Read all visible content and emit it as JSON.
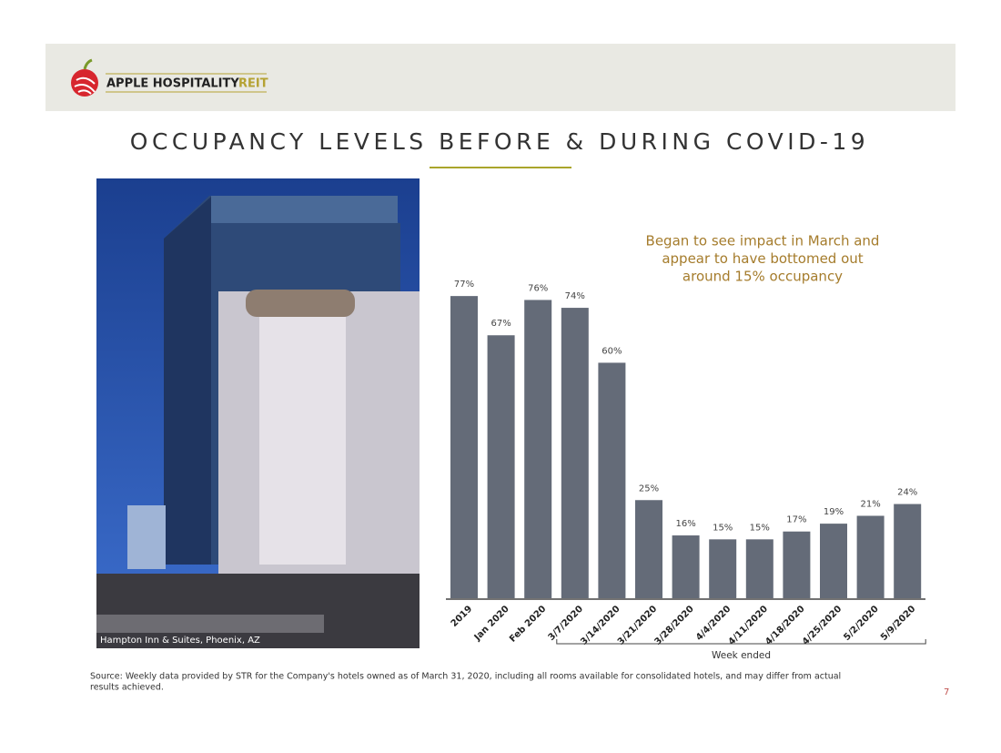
{
  "header": {
    "brand": "APPLE HOSPITALITY",
    "brand_suffix": "REIT"
  },
  "title": "OCCUPANCY LEVELS BEFORE & DURING COVID-19",
  "photo_caption": "Hampton Inn & Suites, Phoenix, AZ",
  "chart_data": {
    "type": "bar",
    "annotation": [
      "Began to see impact in March and",
      "appear to have bottomed out",
      "around 15% occupancy"
    ],
    "x_group_label": "Week ended",
    "categories": [
      "2019",
      "Jan 2020",
      "Feb 2020",
      "3/7/2020",
      "3/14/2020",
      "3/21/2020",
      "3/28/2020",
      "4/4/2020",
      "4/11/2020",
      "4/18/2020",
      "4/25/2020",
      "5/2/2020",
      "5/9/2020"
    ],
    "values": [
      77,
      67,
      76,
      74,
      60,
      25,
      16,
      15,
      15,
      17,
      19,
      21,
      24
    ],
    "value_labels": [
      "77%",
      "67%",
      "76%",
      "74%",
      "60%",
      "25%",
      "16%",
      "15%",
      "15%",
      "17%",
      "19%",
      "21%",
      "24%"
    ],
    "color": "#646b78"
  },
  "source": [
    "Source:  Weekly data provided by STR for the Company's hotels owned as of March 31, 2020, including all rooms available for consolidated hotels, and may differ from actual",
    "results achieved."
  ],
  "page_number": "7"
}
